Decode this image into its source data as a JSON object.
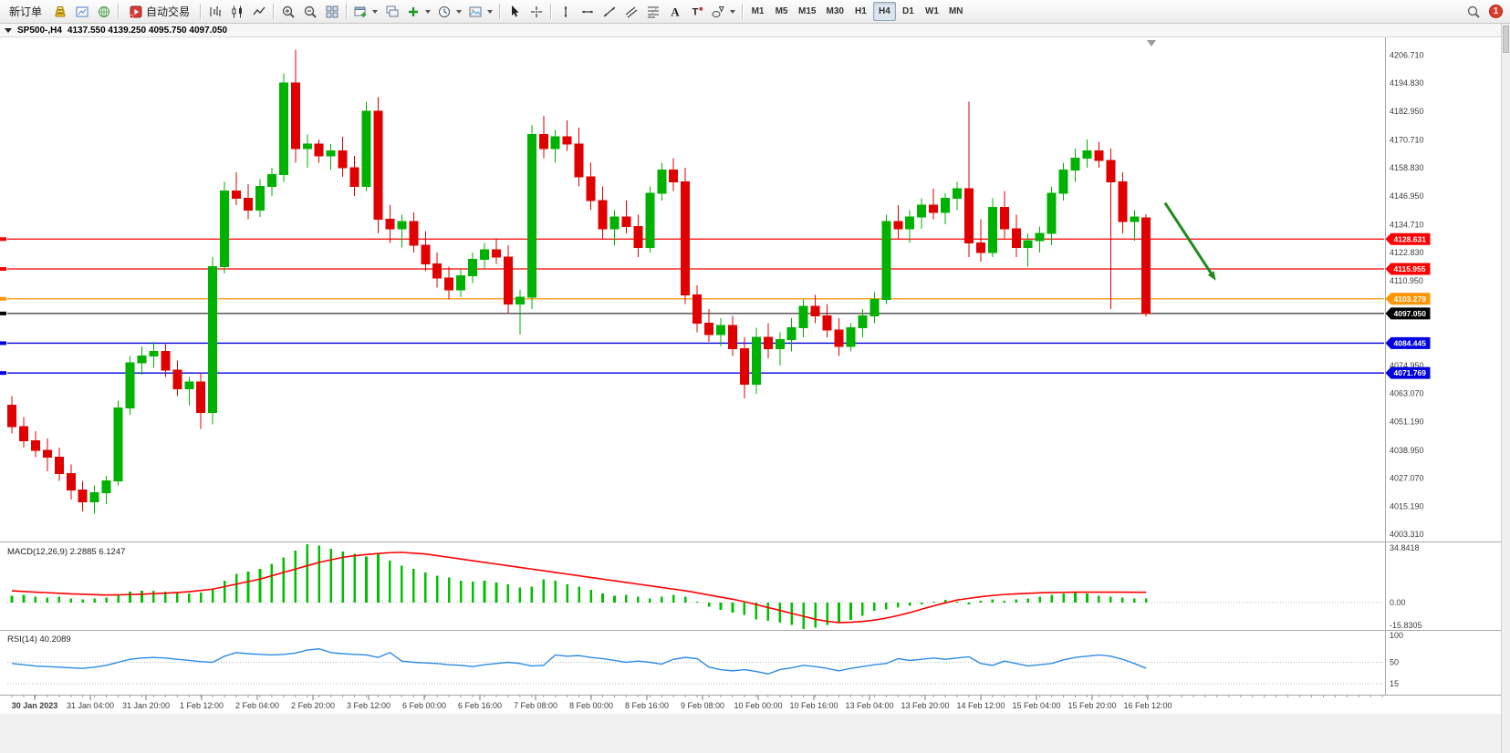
{
  "toolbar": {
    "active_timeframe": "H4",
    "items": [
      {
        "type": "button",
        "name": "new-order-button",
        "label": "新订单"
      },
      {
        "type": "icon",
        "name": "market-watch-button",
        "icon": "coins-icon"
      },
      {
        "type": "icon",
        "name": "charts-button",
        "icon": "chart-window-icon"
      },
      {
        "type": "icon",
        "name": "navigator-button",
        "icon": "globe-icon"
      },
      {
        "type": "sep"
      },
      {
        "type": "button",
        "name": "autotrading-button",
        "label": "自动交易",
        "icon": "autotrading-icon"
      },
      {
        "type": "sep"
      },
      {
        "type": "icon",
        "name": "bar-chart-button",
        "icon": "bar-chart-icon"
      },
      {
        "type": "icon",
        "name": "candlestick-button",
        "icon": "candlestick-icon"
      },
      {
        "type": "icon",
        "name": "line-chart-button",
        "icon": "line-chart-icon"
      },
      {
        "type": "sep"
      },
      {
        "type": "icon",
        "name": "zoom-in-button",
        "icon": "zoom-in-icon"
      },
      {
        "type": "icon",
        "name": "zoom-out-button",
        "icon": "zoom-out-icon"
      },
      {
        "type": "icon",
        "name": "tile-windows-button",
        "icon": "tile-icon"
      },
      {
        "type": "sep"
      },
      {
        "type": "icon",
        "name": "new-chart-button",
        "icon": "window-plus-icon",
        "caret": true
      },
      {
        "type": "icon",
        "name": "profiles-button",
        "icon": "window2-icon"
      },
      {
        "type": "icon",
        "name": "add-indicator-button",
        "icon": "plus-icon",
        "caret": true
      },
      {
        "type": "icon",
        "name": "periods-button",
        "icon": "clock-icon",
        "caret": true
      },
      {
        "type": "icon",
        "name": "templates-button",
        "icon": "template-icon",
        "caret": true
      },
      {
        "type": "sep"
      },
      {
        "type": "icon",
        "name": "cursor-button",
        "icon": "cursor-icon"
      },
      {
        "type": "icon",
        "name": "crosshair-button",
        "icon": "crosshair-icon"
      },
      {
        "type": "sep"
      },
      {
        "type": "icon",
        "name": "vertical-line-button",
        "icon": "vline-icon"
      },
      {
        "type": "icon",
        "name": "horizontal-line-button",
        "icon": "hline-icon"
      },
      {
        "type": "icon",
        "name": "trendline-button",
        "icon": "trendline-icon"
      },
      {
        "type": "icon",
        "name": "channel-button",
        "icon": "channel-icon"
      },
      {
        "type": "icon",
        "name": "fibonacci-button",
        "icon": "fibo-icon"
      },
      {
        "type": "icon",
        "name": "text-button",
        "icon": "text-icon"
      },
      {
        "type": "icon",
        "name": "label-button",
        "icon": "label-icon"
      },
      {
        "type": "icon",
        "name": "shapes-button",
        "icon": "shapes-icon",
        "caret": true
      },
      {
        "type": "sep"
      },
      {
        "type": "tf",
        "name": "tf-m1",
        "label": "M1"
      },
      {
        "type": "tf",
        "name": "tf-m5",
        "label": "M5"
      },
      {
        "type": "tf",
        "name": "tf-m15",
        "label": "M15"
      },
      {
        "type": "tf",
        "name": "tf-m30",
        "label": "M30"
      },
      {
        "type": "tf",
        "name": "tf-h1",
        "label": "H1"
      },
      {
        "type": "tf",
        "name": "tf-h4",
        "label": "H4"
      },
      {
        "type": "tf",
        "name": "tf-d1",
        "label": "D1"
      },
      {
        "type": "tf",
        "name": "tf-w1",
        "label": "W1"
      },
      {
        "type": "tf",
        "name": "tf-mn",
        "label": "MN"
      },
      {
        "type": "spacer"
      },
      {
        "type": "icon",
        "name": "search-button",
        "icon": "search-icon"
      },
      {
        "type": "badge",
        "name": "notification-badge",
        "label": "1"
      }
    ]
  },
  "chart": {
    "symbol_title": "SP500-,H4",
    "ohlc_text": "4137.550 4139.250 4095.750 4097.050"
  },
  "chart_data": {
    "type": "candlestick",
    "symbol": "SP500-",
    "timeframe": "H4",
    "current_ohlc": {
      "open": "4137.550",
      "high": "4139.250",
      "low": "4095.750",
      "close": "4097.050"
    },
    "price_range": {
      "top": 4213.5,
      "bottom": 4001.0
    },
    "colors": {
      "up": "#00B200",
      "down": "#E00000",
      "macd_hist": "#00C000",
      "macd_signal": "#FF0000",
      "rsi_line": "#2E8BE6",
      "axis_text": "#3c3c3c",
      "panel_border": "#a8a8a8",
      "arrow": "#1C8A1C"
    },
    "y_axis_labels": [
      "4206.710",
      "4194.830",
      "4182.950",
      "4170.710",
      "4158.830",
      "4146.950",
      "4134.710",
      "4122.830",
      "4110.950",
      "4074.950",
      "4063.070",
      "4051.190",
      "4038.950",
      "4027.070",
      "4015.190",
      "4003.310"
    ],
    "x_axis_labels": [
      "30 Jan 2023",
      "31 Jan 04:00",
      "31 Jan 20:00",
      "1 Feb 12:00",
      "2 Feb 04:00",
      "2 Feb 20:00",
      "3 Feb 12:00",
      "6 Feb 00:00",
      "6 Feb 16:00",
      "7 Feb 08:00",
      "8 Feb 00:00",
      "8 Feb 16:00",
      "9 Feb 08:00",
      "10 Feb 00:00",
      "10 Feb 16:00",
      "13 Feb 04:00",
      "13 Feb 20:00",
      "14 Feb 12:00",
      "15 Feb 04:00",
      "15 Feb 20:00",
      "16 Feb 12:00"
    ],
    "hlines": [
      {
        "price": 4128.631,
        "label": "4128.631",
        "color": "#FF0000"
      },
      {
        "price": 4115.955,
        "label": "4115.955",
        "color": "#FF0000"
      },
      {
        "price": 4103.279,
        "label": "4103.279",
        "color": "#FF9500"
      },
      {
        "price": 4097.05,
        "label": "4097.050",
        "color": "#000000"
      },
      {
        "price": 4084.445,
        "label": "4084.445",
        "color": "#0000E0"
      },
      {
        "price": 4071.769,
        "label": "4071.769",
        "color": "#0000E0"
      }
    ],
    "arrow": {
      "from": {
        "bar": 97.6,
        "price": 4144.0
      },
      "to": {
        "bar": 101.9,
        "price": 4111.0
      }
    },
    "candles": [
      [
        4058,
        4062,
        4046,
        4049
      ],
      [
        4049,
        4053,
        4040,
        4043
      ],
      [
        4043,
        4047,
        4036,
        4039
      ],
      [
        4039,
        4044,
        4030,
        4036
      ],
      [
        4036,
        4040,
        4026,
        4029
      ],
      [
        4029,
        4033,
        4018,
        4022
      ],
      [
        4022,
        4026,
        4013,
        4017
      ],
      [
        4017,
        4024,
        4012,
        4021
      ],
      [
        4021,
        4028,
        4016,
        4026
      ],
      [
        4026,
        4060,
        4024,
        4057
      ],
      [
        4057,
        4079,
        4054,
        4076
      ],
      [
        4076,
        4083,
        4071,
        4079
      ],
      [
        4079,
        4085,
        4074,
        4081
      ],
      [
        4081,
        4084,
        4070,
        4073
      ],
      [
        4073,
        4077,
        4062,
        4065
      ],
      [
        4065,
        4070,
        4058,
        4068
      ],
      [
        4068,
        4072,
        4048,
        4055
      ],
      [
        4055,
        4121,
        4050,
        4117
      ],
      [
        4117,
        4153,
        4114,
        4149
      ],
      [
        4149,
        4157,
        4143,
        4146
      ],
      [
        4146,
        4152,
        4137,
        4141
      ],
      [
        4141,
        4154,
        4138,
        4151
      ],
      [
        4151,
        4159,
        4147,
        4156
      ],
      [
        4156,
        4199,
        4153,
        4195
      ],
      [
        4195,
        4209,
        4161,
        4167
      ],
      [
        4167,
        4173,
        4159,
        4169
      ],
      [
        4169,
        4171,
        4161,
        4164
      ],
      [
        4164,
        4169,
        4158,
        4166
      ],
      [
        4166,
        4172,
        4155,
        4159
      ],
      [
        4159,
        4164,
        4147,
        4151
      ],
      [
        4151,
        4187,
        4149,
        4183
      ],
      [
        4183,
        4189,
        4131,
        4137
      ],
      [
        4137,
        4143,
        4127,
        4133
      ],
      [
        4133,
        4139,
        4125,
        4136
      ],
      [
        4136,
        4140,
        4123,
        4126
      ],
      [
        4126,
        4132,
        4115,
        4118
      ],
      [
        4118,
        4123,
        4108,
        4112
      ],
      [
        4112,
        4117,
        4103,
        4107
      ],
      [
        4107,
        4116,
        4104,
        4113
      ],
      [
        4113,
        4123,
        4110,
        4120
      ],
      [
        4120,
        4127,
        4116,
        4124
      ],
      [
        4124,
        4129,
        4118,
        4121
      ],
      [
        4121,
        4126,
        4097,
        4101
      ],
      [
        4101,
        4107,
        4088,
        4104
      ],
      [
        4104,
        4177,
        4099,
        4173
      ],
      [
        4173,
        4181,
        4163,
        4167
      ],
      [
        4167,
        4175,
        4161,
        4172
      ],
      [
        4172,
        4179,
        4166,
        4169
      ],
      [
        4169,
        4176,
        4151,
        4155
      ],
      [
        4155,
        4161,
        4141,
        4145
      ],
      [
        4145,
        4151,
        4129,
        4133
      ],
      [
        4133,
        4141,
        4126,
        4138
      ],
      [
        4138,
        4145,
        4131,
        4134
      ],
      [
        4134,
        4139,
        4121,
        4125
      ],
      [
        4125,
        4151,
        4123,
        4148
      ],
      [
        4148,
        4161,
        4145,
        4158
      ],
      [
        4158,
        4163,
        4149,
        4153
      ],
      [
        4153,
        4159,
        4101,
        4105
      ],
      [
        4105,
        4109,
        4089,
        4093
      ],
      [
        4093,
        4099,
        4085,
        4088
      ],
      [
        4088,
        4095,
        4083,
        4092
      ],
      [
        4092,
        4096,
        4079,
        4082
      ],
      [
        4082,
        4087,
        4061,
        4067
      ],
      [
        4067,
        4091,
        4063,
        4087
      ],
      [
        4087,
        4093,
        4078,
        4082
      ],
      [
        4082,
        4089,
        4075,
        4086
      ],
      [
        4086,
        4095,
        4081,
        4091
      ],
      [
        4091,
        4103,
        4087,
        4100
      ],
      [
        4100,
        4105,
        4093,
        4096
      ],
      [
        4096,
        4101,
        4087,
        4090
      ],
      [
        4090,
        4095,
        4079,
        4083
      ],
      [
        4083,
        4093,
        4081,
        4091
      ],
      [
        4091,
        4099,
        4087,
        4096
      ],
      [
        4096,
        4106,
        4093,
        4103
      ],
      [
        4103,
        4139,
        4101,
        4136
      ],
      [
        4136,
        4143,
        4129,
        4133
      ],
      [
        4133,
        4141,
        4127,
        4138
      ],
      [
        4138,
        4146,
        4133,
        4143
      ],
      [
        4143,
        4150,
        4137,
        4140
      ],
      [
        4140,
        4148,
        4135,
        4146
      ],
      [
        4146,
        4153,
        4141,
        4150
      ],
      [
        4150,
        4187,
        4121,
        4127
      ],
      [
        4127,
        4137,
        4119,
        4123
      ],
      [
        4123,
        4146,
        4121,
        4142
      ],
      [
        4142,
        4149,
        4129,
        4133
      ],
      [
        4133,
        4139,
        4121,
        4125
      ],
      [
        4125,
        4131,
        4117,
        4128
      ],
      [
        4128,
        4134,
        4123,
        4131
      ],
      [
        4131,
        4151,
        4126,
        4148
      ],
      [
        4148,
        4161,
        4145,
        4158
      ],
      [
        4158,
        4167,
        4153,
        4163
      ],
      [
        4163,
        4171,
        4159,
        4166
      ],
      [
        4166,
        4170,
        4159,
        4162
      ],
      [
        4162,
        4167,
        4099,
        4153
      ],
      [
        4153,
        4157,
        4131,
        4136
      ],
      [
        4136,
        4141,
        4128,
        4138
      ],
      [
        4137.55,
        4139.25,
        4095.75,
        4097.05
      ]
    ],
    "indicators": {
      "macd": {
        "label": "MACD(12,26,9)",
        "values": [
          "2.2885",
          "6.1247"
        ],
        "axis_labels": [
          "34.8418",
          "0.00",
          "-15.8305"
        ],
        "max": 34.8418,
        "min": -15.8305,
        "histogram": [
          4,
          4.5,
          3.5,
          3,
          3.5,
          2.5,
          2,
          2.5,
          3,
          5,
          6.5,
          7,
          7,
          6.5,
          6,
          5.5,
          6,
          8,
          13,
          17,
          18.5,
          20,
          23,
          27,
          31,
          34.84,
          34,
          32,
          30.5,
          29,
          27.5,
          29,
          25,
          22,
          20,
          18,
          16,
          15,
          13,
          12.5,
          13,
          12,
          11,
          9,
          9.5,
          14,
          13,
          11,
          9.5,
          7.5,
          5.5,
          4,
          4.5,
          3.5,
          2.5,
          3.5,
          4.5,
          3.5,
          0.5,
          -2.5,
          -4.5,
          -6,
          -7.5,
          -10,
          -11,
          -12,
          -13.5,
          -15.83,
          -15,
          -13.5,
          -12,
          -10.5,
          -8,
          -5,
          -4,
          -3,
          -2,
          -1,
          0.5,
          1.5,
          0.5,
          -1,
          1,
          2,
          1,
          2,
          2.5,
          3.5,
          4.5,
          5.5,
          6,
          5.5,
          4,
          3.5,
          3,
          2.5,
          2.29
        ],
        "signal": [
          7,
          6.6,
          6.2,
          5.9,
          5.5,
          5.2,
          5,
          4.7,
          4.5,
          4.6,
          4.8,
          5,
          5.3,
          5.6,
          6,
          6.5,
          7.2,
          8,
          9.5,
          11,
          12.5,
          14,
          16,
          18,
          20,
          22,
          24,
          25.5,
          27,
          28,
          28.7,
          29.3,
          29.8,
          30,
          29.5,
          29,
          28,
          27,
          26,
          25,
          24,
          23,
          22,
          21,
          20,
          19,
          18,
          17,
          16,
          15,
          14,
          13,
          12,
          11,
          10,
          9,
          8,
          7,
          5.8,
          4.5,
          3.2,
          2,
          0.5,
          -1.2,
          -3,
          -4.7,
          -6.5,
          -8.2,
          -10,
          -11.2,
          -12,
          -11.8,
          -11.3,
          -10.5,
          -9.3,
          -7.8,
          -6,
          -4,
          -2,
          -0.2,
          1.5,
          2.5,
          3.5,
          4.2,
          4.8,
          5.2,
          5.5,
          5.8,
          6,
          6.1,
          6.2,
          6.2,
          6.2,
          6.2,
          6.18,
          6.15,
          6.12
        ]
      },
      "rsi": {
        "label": "RSI(14)",
        "value": "40.2089",
        "axis_labels": [
          "100",
          "50",
          "15"
        ],
        "levels": [
          50,
          15
        ],
        "values": [
          48,
          46,
          44,
          43,
          42,
          41,
          40,
          42,
          45,
          50,
          55,
          57,
          58,
          57,
          55,
          53,
          51,
          50,
          60,
          66,
          64,
          63,
          62,
          63,
          65,
          70,
          72,
          66,
          64,
          63,
          62,
          58,
          66,
          52,
          50,
          49,
          48,
          46,
          45,
          43,
          46,
          48,
          50,
          48,
          44,
          45,
          62,
          60,
          61,
          58,
          56,
          53,
          50,
          52,
          50,
          47,
          55,
          58,
          56,
          42,
          38,
          36,
          38,
          35,
          31,
          38,
          41,
          45,
          43,
          40,
          36,
          40,
          43,
          46,
          48,
          56,
          53,
          55,
          57,
          55,
          57,
          59,
          48,
          45,
          52,
          48,
          44,
          46,
          48,
          54,
          58,
          60,
          62,
          60,
          55,
          48,
          40.21
        ]
      }
    }
  }
}
